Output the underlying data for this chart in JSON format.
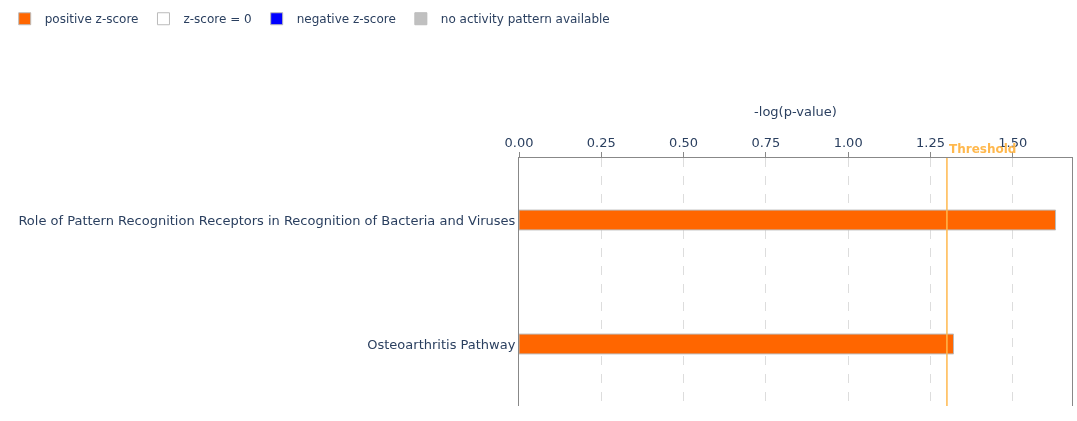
{
  "chart_data": {
    "type": "bar",
    "orientation": "horizontal",
    "xlabel": "-log(p-value)",
    "categories": [
      "Role of Pattern Recognition Receptors in Recognition of Bacteria and Viruses",
      "Osteoarthritis Pathway"
    ],
    "series": [
      {
        "name": "positive z-score",
        "color": "#ff6600",
        "values": [
          1.63,
          1.32
        ]
      },
      {
        "name": "z-score = 0",
        "color": "#ffffff",
        "values": [
          null,
          null
        ]
      },
      {
        "name": "negative z-score",
        "color": "#0000ff",
        "values": [
          null,
          null
        ]
      },
      {
        "name": "no activity pattern available",
        "color": "#c0c0c0",
        "values": [
          null,
          null
        ]
      }
    ],
    "xlim": [
      0,
      1.68
    ],
    "xticks": [
      {
        "value": 0,
        "label": "0.00"
      },
      {
        "value": 0.25,
        "label": "0.25"
      },
      {
        "value": 0.5,
        "label": "0.50"
      },
      {
        "value": 0.75,
        "label": "0.75"
      },
      {
        "value": 1,
        "label": "1.00"
      },
      {
        "value": 1.25,
        "label": "1.25"
      },
      {
        "value": 1.5,
        "label": "1.50"
      }
    ],
    "ref_lines": [
      {
        "axis": "x",
        "value": 1.3,
        "label": "Threshold",
        "color": "#ffb84d"
      }
    ],
    "grid": "x",
    "legend": "top left"
  }
}
